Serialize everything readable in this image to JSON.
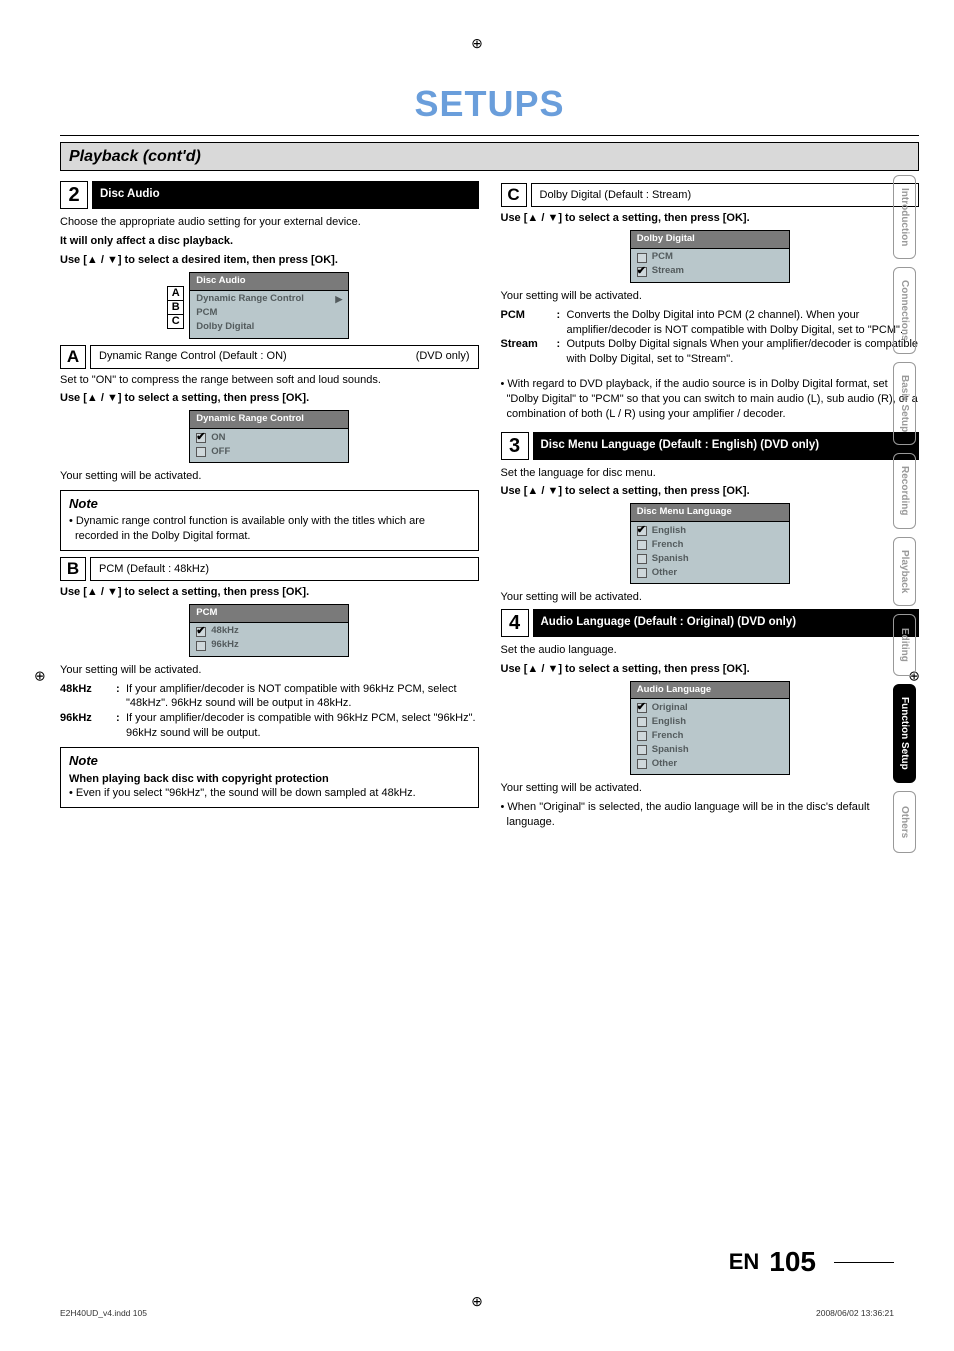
{
  "registration_glyph": "⊕",
  "main_title": "SETUPS",
  "section_bar": "Playback (cont'd)",
  "sidetabs": [
    {
      "label": "Introduction",
      "active": false
    },
    {
      "label": "Connections",
      "active": false
    },
    {
      "label": "Basic Setup",
      "active": false
    },
    {
      "label": "Recording",
      "active": false
    },
    {
      "label": "Playback",
      "active": false
    },
    {
      "label": "Editing",
      "active": false
    },
    {
      "label": "Function Setup",
      "active": true
    },
    {
      "label": "Others",
      "active": false
    }
  ],
  "left": {
    "step2": {
      "num": "2",
      "label": "Disc Audio"
    },
    "intro": "Choose the appropriate audio setting for your external device.",
    "affect": "It will only affect a disc playback.",
    "use_item": "Use [▲ / ▼] to select a desired item, then press [OK].",
    "menu_disc_audio": {
      "title": "Disc Audio",
      "letts": [
        "A",
        "B",
        "C"
      ],
      "items": [
        {
          "label": "Dynamic Range Control",
          "arrow": true
        },
        {
          "label": "PCM",
          "arrow": false
        },
        {
          "label": "Dolby Digital",
          "arrow": false
        }
      ]
    },
    "A": {
      "lett": "A",
      "label": "Dynamic Range Control (Default : ON)",
      "tag": "(DVD only)"
    },
    "A_desc": "Set to \"ON\" to compress the range between soft and loud sounds.",
    "use_setting": "Use [▲ / ▼] to select a setting, then press [OK].",
    "menu_drc": {
      "title": "Dynamic Range Control",
      "items": [
        {
          "label": "ON",
          "checked": true
        },
        {
          "label": "OFF",
          "checked": false
        }
      ]
    },
    "activated": "Your setting will be activated.",
    "note1": {
      "title": "Note",
      "item": "Dynamic range control function is available only with the titles which are recorded in the Dolby Digital format."
    },
    "B": {
      "lett": "B",
      "label": "PCM (Default : 48kHz)"
    },
    "menu_pcm": {
      "title": "PCM",
      "items": [
        {
          "label": "48kHz",
          "checked": true
        },
        {
          "label": "96kHz",
          "checked": false
        }
      ]
    },
    "defs_pcm": [
      {
        "term": "48kHz",
        "desc": "If your amplifier/decoder is NOT compatible with 96kHz PCM, select \"48kHz\". 96kHz sound will be output in 48kHz."
      },
      {
        "term": "96kHz",
        "desc": "If your amplifier/decoder is compatible with 96kHz PCM, select \"96kHz\". 96kHz sound will be output."
      }
    ],
    "note2": {
      "title": "Note",
      "heading": "When playing back disc with copyright protection",
      "item": "Even if you select \"96kHz\", the sound will be down sampled at 48kHz."
    }
  },
  "right": {
    "C": {
      "lett": "C",
      "label": "Dolby Digital (Default : Stream)"
    },
    "use_setting": "Use [▲ / ▼] to select a setting, then press [OK].",
    "menu_dd": {
      "title": "Dolby Digital",
      "items": [
        {
          "label": "PCM",
          "checked": false
        },
        {
          "label": "Stream",
          "checked": true
        }
      ]
    },
    "activated": "Your setting will be activated.",
    "defs_dd": [
      {
        "term": "PCM",
        "desc": "Converts the Dolby Digital into PCM (2 channel). When your amplifier/decoder is NOT compatible with Dolby Digital, set to \"PCM\"."
      },
      {
        "term": "Stream",
        "desc": "Outputs Dolby Digital signals When your amplifier/decoder is compatible with Dolby Digital, set to \"Stream\"."
      }
    ],
    "bullet_dvd": "With regard to DVD playback, if the audio source is in Dolby Digital format, set \"Dolby Digital\" to \"PCM\" so that you can switch to main audio (L), sub audio (R), or a combination of both (L / R) using your amplifier / decoder.",
    "step3": {
      "num": "3",
      "label": "Disc Menu Language (Default : English) (DVD only)"
    },
    "step3_desc": "Set the language for disc menu.",
    "menu_disc_lang": {
      "title": "Disc Menu Language",
      "items": [
        {
          "label": "English",
          "checked": true
        },
        {
          "label": "French",
          "checked": false
        },
        {
          "label": "Spanish",
          "checked": false
        },
        {
          "label": "Other",
          "checked": false
        }
      ]
    },
    "step4": {
      "num": "4",
      "label": "Audio Language (Default : Original)  (DVD only)"
    },
    "step4_desc": "Set the audio language.",
    "menu_audio_lang": {
      "title": "Audio Language",
      "items": [
        {
          "label": "Original",
          "checked": true
        },
        {
          "label": "English",
          "checked": false
        },
        {
          "label": "French",
          "checked": false
        },
        {
          "label": "Spanish",
          "checked": false
        },
        {
          "label": "Other",
          "checked": false
        }
      ]
    },
    "bullet_orig": "When \"Original\" is selected, the audio language will be in the disc's default language."
  },
  "footer": {
    "en": "EN",
    "page": "105"
  },
  "fineprint": {
    "left": "E2H40UD_v4.indd   105",
    "right": "2008/06/02   13:36:21"
  }
}
